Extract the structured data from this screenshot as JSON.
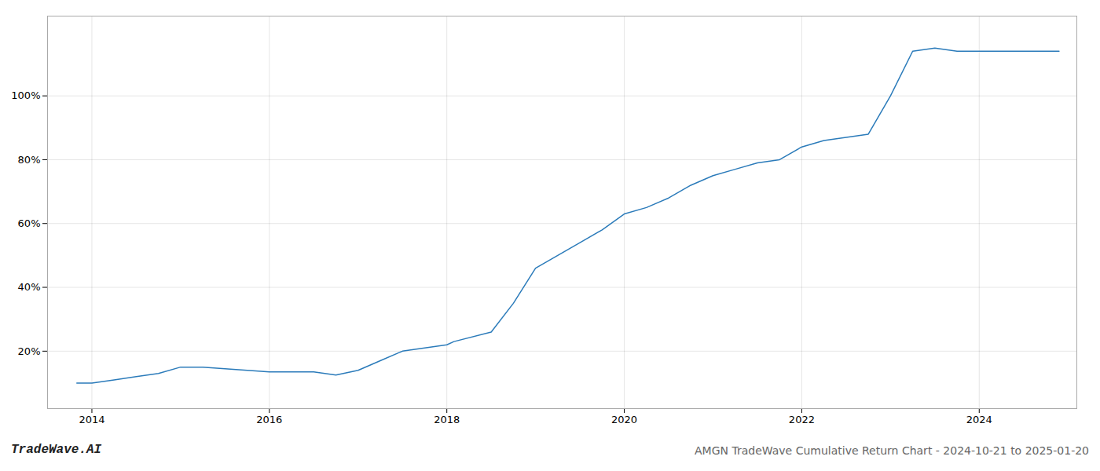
{
  "chart_data": {
    "type": "line",
    "title": "AMGN TradeWave Cumulative Return Chart - 2024-10-21 to 2025-01-20",
    "annotations": [
      "TradeWave.AI"
    ],
    "x": [
      2013.83,
      2014.0,
      2014.25,
      2014.5,
      2014.75,
      2015.0,
      2015.25,
      2015.5,
      2015.75,
      2016.0,
      2016.25,
      2016.5,
      2016.75,
      2017.0,
      2017.25,
      2017.5,
      2017.75,
      2018.0,
      2018.08,
      2018.5,
      2018.75,
      2019.0,
      2019.25,
      2019.5,
      2019.75,
      2020.0,
      2020.25,
      2020.5,
      2020.75,
      2021.0,
      2021.25,
      2021.5,
      2021.75,
      2022.0,
      2022.25,
      2022.5,
      2022.75,
      2023.0,
      2023.25,
      2023.5,
      2023.75,
      2024.0,
      2024.25,
      2024.5,
      2024.75,
      2024.9
    ],
    "values": [
      10,
      10,
      11,
      12,
      13,
      15,
      15,
      14.5,
      14,
      13.5,
      13.5,
      13.5,
      12.5,
      14,
      17,
      20,
      21,
      22,
      23,
      26,
      35,
      46,
      50,
      54,
      58,
      63,
      65,
      68,
      72,
      75,
      77,
      79,
      80,
      84,
      86,
      87,
      88,
      100,
      114,
      115,
      114,
      114,
      114,
      114,
      114,
      114
    ],
    "color": "#2b7bba",
    "xlim": [
      2013.5,
      2025.1
    ],
    "ylim": [
      2,
      125
    ],
    "xticks": [
      2014,
      2016,
      2018,
      2020,
      2022,
      2024
    ],
    "yticks": [
      {
        "value": 20,
        "label": "20%"
      },
      {
        "value": 40,
        "label": "40%"
      },
      {
        "value": 60,
        "label": "60%"
      },
      {
        "value": 80,
        "label": "80%"
      },
      {
        "value": 100,
        "label": "100%"
      }
    ],
    "grid": true
  }
}
